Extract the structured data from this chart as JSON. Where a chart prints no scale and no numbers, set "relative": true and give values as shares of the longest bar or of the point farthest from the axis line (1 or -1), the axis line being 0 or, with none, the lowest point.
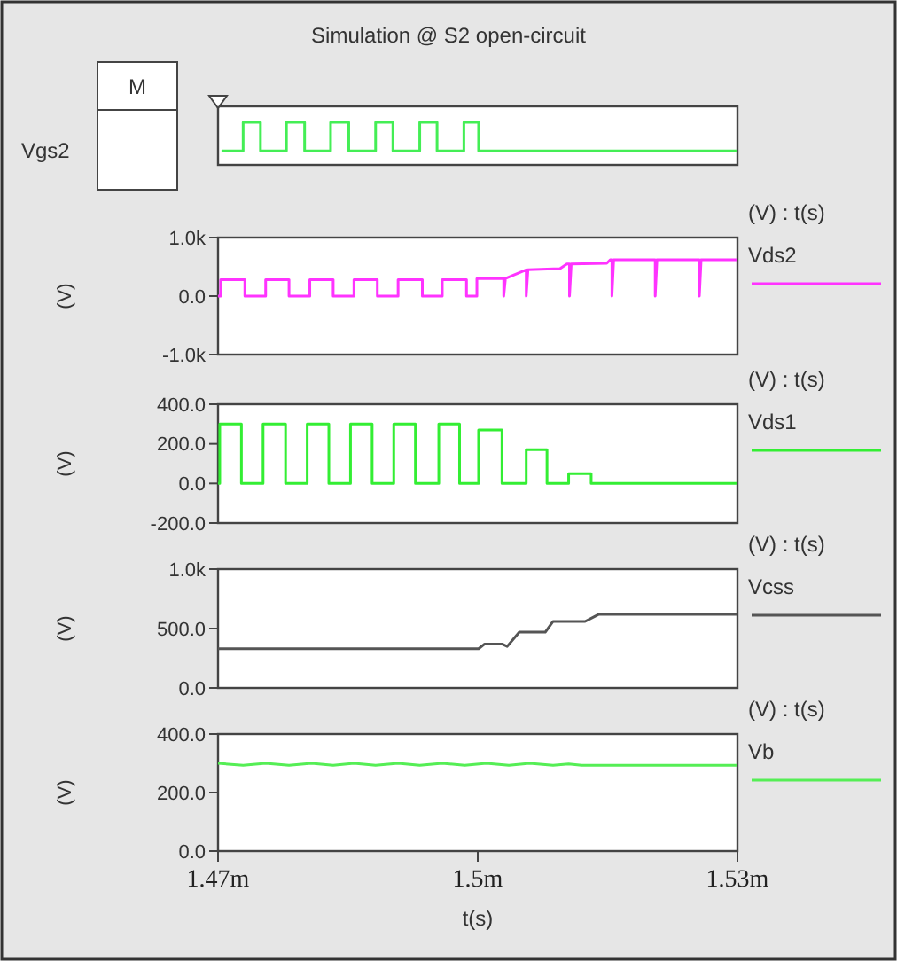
{
  "chart_data": [
    {
      "type": "line",
      "title": "Simulation @ S2 open-circuit",
      "ylabel": "Vgs2",
      "annotations": [
        "M"
      ],
      "relative": true,
      "tick_labels": false,
      "legend": false,
      "xlim": [
        1.47,
        1.53
      ],
      "series": [
        {
          "color": "#44ee55",
          "x": [
            1.4704,
            1.4729,
            1.4729,
            1.4749,
            1.4749,
            1.4779,
            1.4779,
            1.48,
            1.48,
            1.483,
            1.483,
            1.4851,
            1.4851,
            1.4882,
            1.4882,
            1.4902,
            1.4902,
            1.4933,
            1.4933,
            1.4953,
            1.4953,
            1.4984,
            1.4984,
            1.5001,
            1.5001,
            1.53
          ],
          "values": [
            0.33,
            0.33,
            1,
            1,
            0.33,
            0.33,
            1,
            1,
            0.33,
            0.33,
            1,
            1,
            0.33,
            0.33,
            1,
            1,
            0.33,
            0.33,
            1,
            1,
            0.33,
            0.33,
            1,
            1,
            0.33,
            0.33
          ]
        }
      ]
    },
    {
      "type": "line",
      "ylabel": "(V)",
      "annotations": [
        "(V) : t(s)"
      ],
      "tick_labels": "y",
      "legend": "right",
      "xlim": [
        1.47,
        1.53
      ],
      "ylim": [
        -1000,
        1000
      ],
      "yticks": [
        {
          "value": 1000,
          "label": "1.0k"
        },
        {
          "value": 0,
          "label": "0.0"
        },
        {
          "value": -1000,
          "label": "-1.0k"
        }
      ],
      "series": [
        {
          "name": "Vds2",
          "color": "#ff33ff",
          "x": [
            1.47,
            1.4703,
            1.4703,
            1.4731,
            1.4731,
            1.4755,
            1.4755,
            1.4782,
            1.4782,
            1.4806,
            1.4806,
            1.4833,
            1.4833,
            1.4857,
            1.4857,
            1.4884,
            1.4884,
            1.4908,
            1.4908,
            1.4936,
            1.4936,
            1.4959,
            1.4959,
            1.4987,
            1.4987,
            1.4999,
            1.4999,
            1.503,
            1.503,
            1.5032,
            1.5048,
            1.5056,
            1.5056,
            1.5058,
            1.5095,
            1.5103,
            1.5106,
            1.5106,
            1.5108,
            1.5149,
            1.5153,
            1.5155,
            1.5155,
            1.5157,
            1.5205,
            1.5205,
            1.5207,
            1.5256,
            1.5256,
            1.5258,
            1.53
          ],
          "values": [
            0,
            0,
            280,
            280,
            0,
            0,
            280,
            280,
            0,
            0,
            280,
            280,
            0,
            0,
            280,
            280,
            0,
            0,
            280,
            280,
            0,
            0,
            280,
            280,
            0,
            0,
            300,
            300,
            0,
            300,
            400,
            450,
            0,
            450,
            470,
            550,
            550,
            0,
            550,
            560,
            620,
            620,
            0,
            620,
            620,
            0,
            620,
            620,
            0,
            620,
            620
          ]
        }
      ]
    },
    {
      "type": "line",
      "ylabel": "(V)",
      "annotations": [
        "(V) : t(s)"
      ],
      "tick_labels": "y",
      "legend": "right",
      "xlim": [
        1.47,
        1.53
      ],
      "ylim": [
        -200,
        400
      ],
      "yticks": [
        {
          "value": 400,
          "label": "400.0"
        },
        {
          "value": 200,
          "label": "200.0"
        },
        {
          "value": 0,
          "label": "0.0"
        },
        {
          "value": -200,
          "label": "-200.0"
        }
      ],
      "series": [
        {
          "name": "Vds1",
          "color": "#33ee33",
          "x": [
            1.47,
            1.4702,
            1.4702,
            1.4727,
            1.4727,
            1.4752,
            1.4752,
            1.4778,
            1.4778,
            1.4803,
            1.4803,
            1.4828,
            1.4828,
            1.4853,
            1.4853,
            1.4878,
            1.4878,
            1.4903,
            1.4903,
            1.4928,
            1.4928,
            1.4955,
            1.4955,
            1.4979,
            1.4979,
            1.5001,
            1.5001,
            1.5028,
            1.5028,
            1.5056,
            1.5056,
            1.508,
            1.508,
            1.5105,
            1.5105,
            1.5131,
            1.5131,
            1.53
          ],
          "values": [
            0,
            0,
            300,
            300,
            0,
            0,
            300,
            300,
            0,
            0,
            300,
            300,
            0,
            0,
            300,
            300,
            0,
            0,
            300,
            300,
            0,
            0,
            300,
            300,
            0,
            0,
            270,
            270,
            0,
            0,
            170,
            170,
            0,
            0,
            50,
            50,
            0,
            0
          ]
        }
      ]
    },
    {
      "type": "line",
      "ylabel": "(V)",
      "annotations": [
        "(V) : t(s)"
      ],
      "tick_labels": "y",
      "legend": "right",
      "xlim": [
        1.47,
        1.53
      ],
      "ylim": [
        0,
        1000
      ],
      "yticks": [
        {
          "value": 1000,
          "label": "1.0k"
        },
        {
          "value": 500,
          "label": "500.0"
        },
        {
          "value": 0,
          "label": "0.0"
        }
      ],
      "series": [
        {
          "name": "Vcss",
          "color": "#555555",
          "x": [
            1.47,
            1.5001,
            1.5008,
            1.5028,
            1.5034,
            1.5048,
            1.5078,
            1.5087,
            1.5124,
            1.514,
            1.53
          ],
          "values": [
            330,
            330,
            370,
            370,
            350,
            470,
            470,
            560,
            560,
            620,
            620
          ]
        }
      ]
    },
    {
      "type": "line",
      "ylabel": "(V)",
      "xlabel": "t(s)",
      "annotations": [
        "(V) : t(s)"
      ],
      "legend": "right",
      "xlim": [
        1.47,
        1.53
      ],
      "xticks": [
        {
          "value": 1.47,
          "label": "1.47m"
        },
        {
          "value": 1.5,
          "label": "1.5m"
        },
        {
          "value": 1.53,
          "label": "1.53m"
        }
      ],
      "ylim": [
        0,
        400
      ],
      "yticks": [
        {
          "value": 400,
          "label": "400.0"
        },
        {
          "value": 200,
          "label": "200.0"
        },
        {
          "value": 0,
          "label": "0.0"
        }
      ],
      "series": [
        {
          "name": "Vb",
          "color": "#55ee55",
          "x": [
            1.47,
            1.4729,
            1.4755,
            1.4782,
            1.4808,
            1.4833,
            1.4857,
            1.4882,
            1.4908,
            1.4933,
            1.4959,
            1.4985,
            1.501,
            1.5036,
            1.506,
            1.5087,
            1.5105,
            1.512,
            1.53
          ],
          "values": [
            300,
            293,
            300,
            293,
            300,
            293,
            300,
            293,
            300,
            293,
            300,
            293,
            300,
            293,
            300,
            293,
            298,
            293,
            293
          ]
        }
      ]
    }
  ]
}
